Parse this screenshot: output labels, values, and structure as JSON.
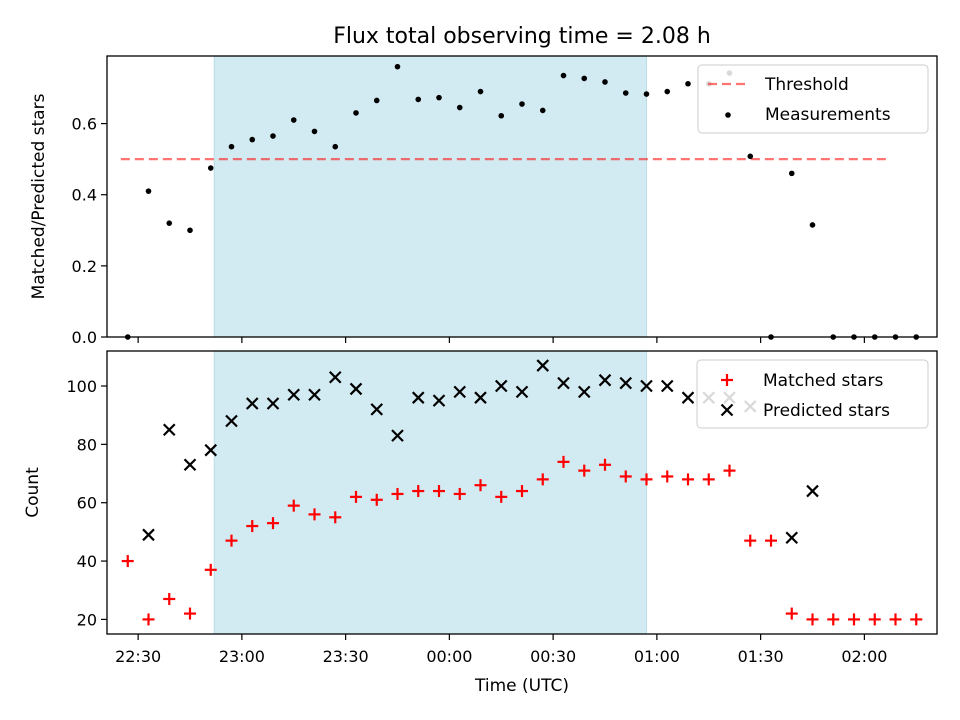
{
  "figure": {
    "title": "Flux total observing time = 2.08 h",
    "xlabel": "Time (UTC)",
    "shaded_span": [
      "22:52",
      "00:57"
    ],
    "colors": {
      "shade": "#add8e6",
      "threshold": "#ff0000",
      "matched": "#ff0000",
      "predicted": "#000000",
      "measurements": "#000000"
    }
  },
  "chart_data": [
    {
      "type": "scatter",
      "ylabel": "Matched/Predicted stars",
      "xlim": [
        "22:21",
        "02:21"
      ],
      "ylim": [
        0,
        0.79
      ],
      "yticks": [
        0.0,
        0.2,
        0.4,
        0.6
      ],
      "ytick_labels": [
        "0.0",
        "0.2",
        "0.4",
        "0.6"
      ],
      "legend_location": "upper right",
      "threshold": {
        "name": "Threshold",
        "y": 0.5,
        "x_range": [
          "22:25",
          "02:07"
        ]
      },
      "series": [
        {
          "name": "Measurements",
          "points": [
            [
              "22:27",
              0.0
            ],
            [
              "22:33",
              0.41
            ],
            [
              "22:39",
              0.32
            ],
            [
              "22:45",
              0.3
            ],
            [
              "22:51",
              0.475
            ],
            [
              "22:57",
              0.535
            ],
            [
              "23:03",
              0.555
            ],
            [
              "23:09",
              0.565
            ],
            [
              "23:15",
              0.61
            ],
            [
              "23:21",
              0.578
            ],
            [
              "23:27",
              0.535
            ],
            [
              "23:33",
              0.63
            ],
            [
              "23:39",
              0.665
            ],
            [
              "23:45",
              0.76
            ],
            [
              "23:51",
              0.668
            ],
            [
              "23:57",
              0.673
            ],
            [
              "00:03",
              0.645
            ],
            [
              "00:09",
              0.69
            ],
            [
              "00:15",
              0.622
            ],
            [
              "00:21",
              0.655
            ],
            [
              "00:27",
              0.637
            ],
            [
              "00:33",
              0.735
            ],
            [
              "00:39",
              0.727
            ],
            [
              "00:45",
              0.717
            ],
            [
              "00:51",
              0.686
            ],
            [
              "00:57",
              0.683
            ],
            [
              "01:03",
              0.69
            ],
            [
              "01:09",
              0.712
            ],
            [
              "01:15",
              0.712
            ],
            [
              "01:21",
              0.742
            ],
            [
              "01:27",
              0.508
            ],
            [
              "01:33",
              0.0
            ],
            [
              "01:39",
              0.46
            ],
            [
              "01:45",
              0.315
            ],
            [
              "01:51",
              0.0
            ],
            [
              "01:57",
              0.0
            ],
            [
              "02:03",
              0.0
            ],
            [
              "02:09",
              0.0
            ],
            [
              "02:15",
              0.0
            ]
          ]
        }
      ],
      "legend": [
        "Threshold",
        "Measurements"
      ]
    },
    {
      "type": "scatter",
      "ylabel": "Count",
      "xlim": [
        "22:21",
        "02:21"
      ],
      "ylim": [
        15,
        112
      ],
      "yticks": [
        20,
        40,
        60,
        80,
        100
      ],
      "ytick_labels": [
        "20",
        "40",
        "60",
        "80",
        "100"
      ],
      "xtick_labels": [
        "22:30",
        "23:00",
        "23:30",
        "00:00",
        "00:30",
        "01:00",
        "01:30",
        "02:00"
      ],
      "legend_location": "upper right",
      "series": [
        {
          "name": "Matched stars",
          "marker": "+",
          "points": [
            [
              "22:27",
              40
            ],
            [
              "22:33",
              20
            ],
            [
              "22:39",
              27
            ],
            [
              "22:45",
              22
            ],
            [
              "22:51",
              37
            ],
            [
              "22:57",
              47
            ],
            [
              "23:03",
              52
            ],
            [
              "23:09",
              53
            ],
            [
              "23:15",
              59
            ],
            [
              "23:21",
              56
            ],
            [
              "23:27",
              55
            ],
            [
              "23:33",
              62
            ],
            [
              "23:39",
              61
            ],
            [
              "23:45",
              63
            ],
            [
              "23:51",
              64
            ],
            [
              "23:57",
              64
            ],
            [
              "00:03",
              63
            ],
            [
              "00:09",
              66
            ],
            [
              "00:15",
              62
            ],
            [
              "00:21",
              64
            ],
            [
              "00:27",
              68
            ],
            [
              "00:33",
              74
            ],
            [
              "00:39",
              71
            ],
            [
              "00:45",
              73
            ],
            [
              "00:51",
              69
            ],
            [
              "00:57",
              68
            ],
            [
              "01:03",
              69
            ],
            [
              "01:09",
              68
            ],
            [
              "01:15",
              68
            ],
            [
              "01:21",
              71
            ],
            [
              "01:27",
              47
            ],
            [
              "01:33",
              47
            ],
            [
              "01:39",
              22
            ],
            [
              "01:45",
              20
            ],
            [
              "01:51",
              20
            ],
            [
              "01:57",
              20
            ],
            [
              "02:03",
              20
            ],
            [
              "02:09",
              20
            ],
            [
              "02:15",
              20
            ]
          ]
        },
        {
          "name": "Predicted stars",
          "marker": "x",
          "points": [
            [
              "22:33",
              49
            ],
            [
              "22:39",
              85
            ],
            [
              "22:45",
              73
            ],
            [
              "22:51",
              78
            ],
            [
              "22:57",
              88
            ],
            [
              "23:03",
              94
            ],
            [
              "23:09",
              94
            ],
            [
              "23:15",
              97
            ],
            [
              "23:21",
              97
            ],
            [
              "23:27",
              103
            ],
            [
              "23:33",
              99
            ],
            [
              "23:39",
              92
            ],
            [
              "23:45",
              83
            ],
            [
              "23:51",
              96
            ],
            [
              "23:57",
              95
            ],
            [
              "00:03",
              98
            ],
            [
              "00:09",
              96
            ],
            [
              "00:15",
              100
            ],
            [
              "00:21",
              98
            ],
            [
              "00:27",
              107
            ],
            [
              "00:33",
              101
            ],
            [
              "00:39",
              98
            ],
            [
              "00:45",
              102
            ],
            [
              "00:51",
              101
            ],
            [
              "00:57",
              100
            ],
            [
              "01:03",
              100
            ],
            [
              "01:09",
              96
            ],
            [
              "01:15",
              96
            ],
            [
              "01:21",
              96
            ],
            [
              "01:27",
              93
            ],
            [
              "01:39",
              48
            ],
            [
              "01:45",
              64
            ]
          ]
        }
      ],
      "legend": [
        "Matched stars",
        "Predicted stars"
      ]
    }
  ]
}
